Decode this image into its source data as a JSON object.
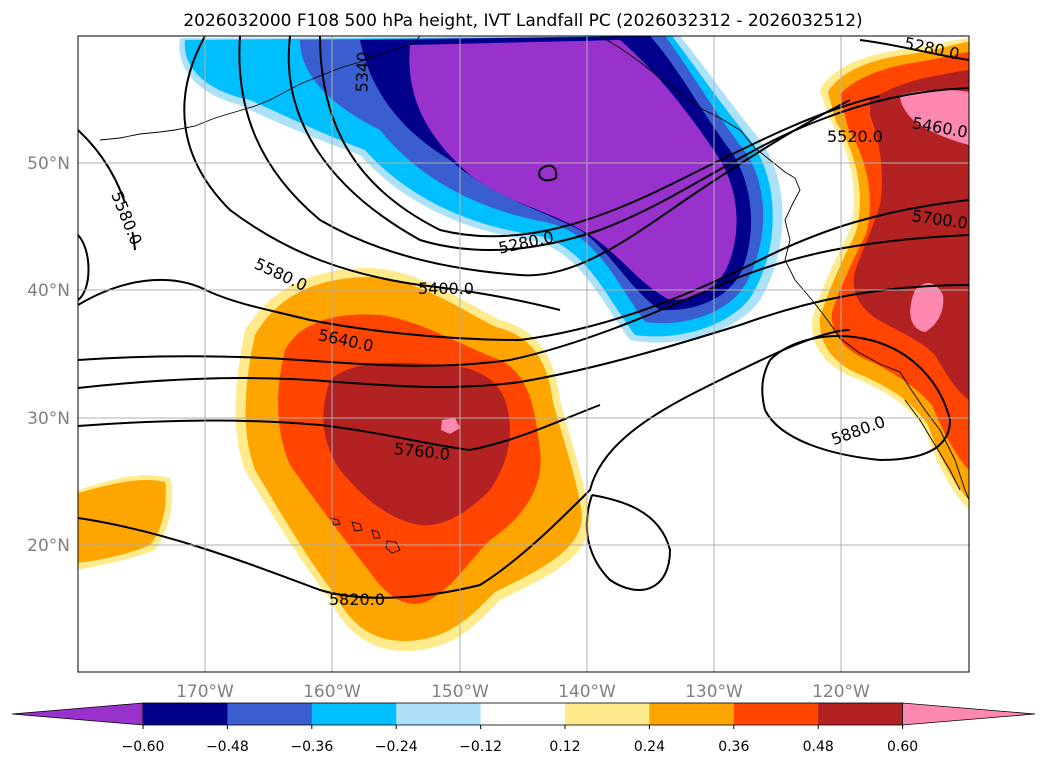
{
  "title": "2026032000 F108 500 hPa height, IVT Landfall PC (2026032312 - 2026032512)",
  "map": {
    "lat_ticks": [
      "50°N",
      "40°N",
      "30°N",
      "20°N"
    ],
    "lon_ticks": [
      "170°W",
      "160°W",
      "150°W",
      "140°W",
      "130°W",
      "120°W"
    ],
    "gridlines": true
  },
  "contour_labels": [
    "5580.0",
    "5580.0",
    "5640.0",
    "5400.0",
    "5280.0",
    "5340",
    "5760.0",
    "5820.0",
    "5880.0",
    "5520.0",
    "5460.0",
    "5700.0",
    "5280.0"
  ],
  "colorbar": {
    "ticks": [
      "−0.60",
      "−0.48",
      "−0.36",
      "−0.24",
      "−0.12",
      "0.12",
      "0.24",
      "0.36",
      "0.48",
      "0.60"
    ],
    "colors": [
      "#9932CC",
      "#00008B",
      "#3A5ECF",
      "#00BFFF",
      "#ADE1FA",
      "#FFFFFF",
      "#FFEA8C",
      "#FFA500",
      "#FF4500",
      "#B22222",
      "#FF88B0"
    ],
    "extend": "both"
  }
}
